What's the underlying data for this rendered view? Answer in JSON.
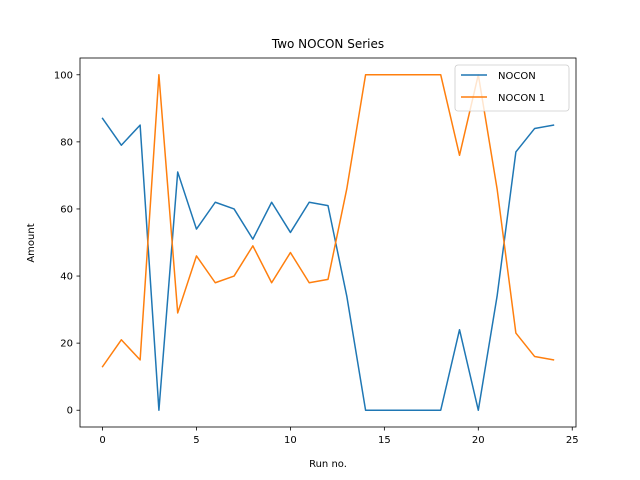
{
  "chart_data": {
    "type": "line",
    "title": "Two NOCON Series",
    "xlabel": "Run no.",
    "ylabel": "Amount",
    "xlim": [
      -1.2,
      25.2
    ],
    "ylim": [
      -5,
      105
    ],
    "xticks": [
      0,
      5,
      10,
      15,
      20,
      25
    ],
    "yticks": [
      0,
      20,
      40,
      60,
      80,
      100
    ],
    "grid": false,
    "legend_position": "top-right",
    "x": [
      0,
      1,
      2,
      3,
      4,
      5,
      6,
      7,
      8,
      9,
      10,
      11,
      12,
      13,
      14,
      15,
      16,
      17,
      18,
      19,
      20,
      21,
      22,
      23,
      24
    ],
    "series": [
      {
        "name": "NOCON",
        "color": "#1f77b4",
        "values": [
          87,
          79,
          85,
          0,
          71,
          54,
          62,
          60,
          51,
          62,
          53,
          62,
          61,
          34,
          0,
          0,
          0,
          0,
          0,
          24,
          0,
          34,
          77,
          84,
          85
        ]
      },
      {
        "name": "NOCON 1",
        "color": "#ff7f0e",
        "values": [
          13,
          21,
          15,
          100,
          29,
          46,
          38,
          40,
          49,
          38,
          47,
          38,
          39,
          66,
          100,
          100,
          100,
          100,
          100,
          76,
          100,
          66,
          23,
          16,
          15
        ]
      }
    ]
  }
}
